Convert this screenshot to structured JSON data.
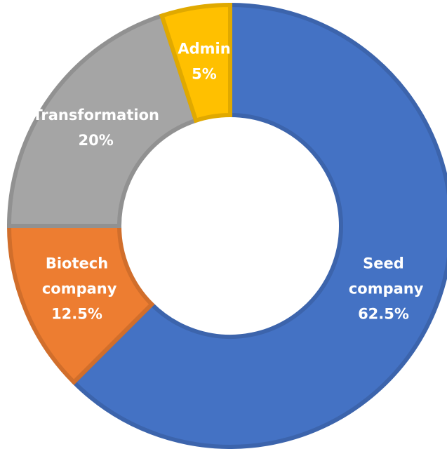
{
  "chart_data": {
    "type": "donut",
    "categories": [
      "Seed company",
      "Biotech company",
      "Transformation",
      "Admin"
    ],
    "values": [
      62.5,
      12.5,
      20,
      5
    ],
    "value_labels": [
      "62.5%",
      "12.5%",
      "20%",
      "5%"
    ],
    "colors": [
      "#4472c4",
      "#ed7d31",
      "#a5a5a5",
      "#ffc000"
    ]
  }
}
